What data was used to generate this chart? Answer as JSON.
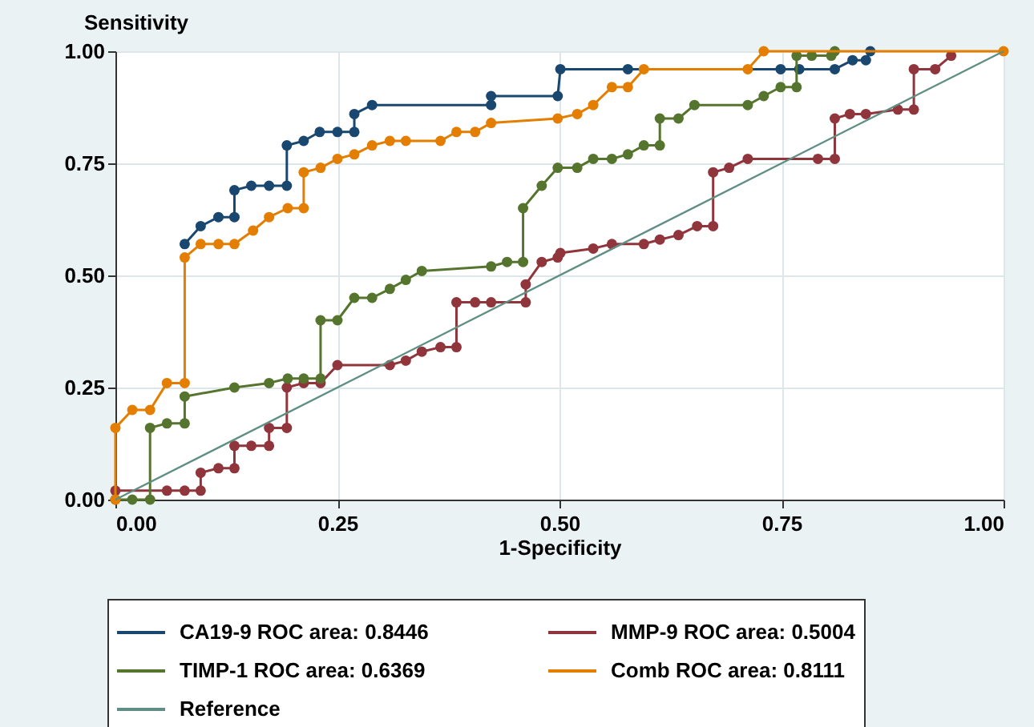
{
  "chart_data": {
    "type": "line",
    "xlabel": "1-Specificity",
    "ylabel": "Sensitivity",
    "xlim": [
      0,
      1
    ],
    "ylim": [
      0,
      1
    ],
    "xticks": [
      {
        "value": 0,
        "label": "0.00"
      },
      {
        "value": 0.25,
        "label": "0.25"
      },
      {
        "value": 0.5,
        "label": "0.50"
      },
      {
        "value": 0.75,
        "label": "0.75"
      },
      {
        "value": 1,
        "label": "1.00"
      }
    ],
    "yticks": [
      {
        "value": 0,
        "label": "0.00"
      },
      {
        "value": 0.25,
        "label": "0.25"
      },
      {
        "value": 0.5,
        "label": "0.50"
      },
      {
        "value": 0.75,
        "label": "0.75"
      },
      {
        "value": 1,
        "label": "1.00"
      }
    ],
    "grid": true,
    "legend": "bottom",
    "series": [
      {
        "name": "CA19-9 ROC area: 0.8446",
        "color": "#1a476f",
        "marker": "circle",
        "x": [
          0.078,
          0.096,
          0.116,
          0.134,
          0.134,
          0.153,
          0.173,
          0.193,
          0.193,
          0.212,
          0.23,
          0.25,
          0.269,
          0.269,
          0.289,
          0.423,
          0.423,
          0.498,
          0.501,
          0.577,
          0.749,
          0.77,
          0.81,
          0.83,
          0.845,
          0.85
        ],
        "values": [
          0.57,
          0.61,
          0.63,
          0.63,
          0.69,
          0.7,
          0.7,
          0.7,
          0.79,
          0.8,
          0.82,
          0.82,
          0.82,
          0.86,
          0.88,
          0.88,
          0.9,
          0.9,
          0.96,
          0.96,
          0.96,
          0.96,
          0.96,
          0.98,
          0.98,
          1
        ]
      },
      {
        "name": "MMP-9 ROC area: 0.5004",
        "color": "#90353b",
        "marker": "circle",
        "x": [
          0,
          0.058,
          0.078,
          0.096,
          0.096,
          0.116,
          0.134,
          0.134,
          0.153,
          0.173,
          0.173,
          0.193,
          0.193,
          0.212,
          0.231,
          0.25,
          0.309,
          0.327,
          0.345,
          0.366,
          0.384,
          0.384,
          0.405,
          0.423,
          0.462,
          0.462,
          0.48,
          0.498,
          0.501,
          0.538,
          0.559,
          0.595,
          0.613,
          0.634,
          0.655,
          0.673,
          0.673,
          0.691,
          0.712,
          0.791,
          0.81,
          0.81,
          0.827,
          0.845,
          0.881,
          0.899,
          0.899,
          0.923,
          0.941
        ],
        "values": [
          0.02,
          0.02,
          0.02,
          0.02,
          0.06,
          0.07,
          0.07,
          0.12,
          0.12,
          0.12,
          0.16,
          0.16,
          0.25,
          0.26,
          0.26,
          0.3,
          0.3,
          0.31,
          0.33,
          0.34,
          0.34,
          0.44,
          0.44,
          0.44,
          0.44,
          0.48,
          0.53,
          0.54,
          0.55,
          0.56,
          0.57,
          0.57,
          0.58,
          0.59,
          0.61,
          0.61,
          0.73,
          0.74,
          0.76,
          0.76,
          0.76,
          0.85,
          0.86,
          0.86,
          0.87,
          0.87,
          0.96,
          0.96,
          0.99
        ]
      },
      {
        "name": "TIMP-1 ROC area: 0.6369",
        "color": "#55752f",
        "marker": "circle",
        "x": [
          0,
          0.019,
          0.039,
          0.039,
          0.058,
          0.078,
          0.078,
          0.134,
          0.173,
          0.194,
          0.212,
          0.231,
          0.231,
          0.25,
          0.269,
          0.289,
          0.309,
          0.327,
          0.345,
          0.423,
          0.441,
          0.459,
          0.459,
          0.48,
          0.498,
          0.52,
          0.538,
          0.559,
          0.577,
          0.595,
          0.613,
          0.613,
          0.634,
          0.652,
          0.712,
          0.73,
          0.749,
          0.767,
          0.767,
          0.784,
          0.806,
          0.81
        ],
        "values": [
          0,
          0,
          0,
          0.16,
          0.17,
          0.17,
          0.23,
          0.25,
          0.26,
          0.27,
          0.27,
          0.27,
          0.4,
          0.4,
          0.45,
          0.45,
          0.47,
          0.49,
          0.51,
          0.52,
          0.53,
          0.53,
          0.65,
          0.7,
          0.74,
          0.74,
          0.76,
          0.76,
          0.77,
          0.79,
          0.79,
          0.85,
          0.85,
          0.88,
          0.88,
          0.9,
          0.92,
          0.92,
          0.99,
          0.99,
          0.99,
          1
        ]
      },
      {
        "name": "Comb ROC area: 0.8111",
        "color": "#e37e00",
        "marker": "circle",
        "x": [
          0,
          0,
          0.019,
          0.039,
          0.058,
          0.078,
          0.078,
          0.096,
          0.116,
          0.134,
          0.155,
          0.173,
          0.194,
          0.212,
          0.212,
          0.231,
          0.25,
          0.269,
          0.289,
          0.309,
          0.327,
          0.366,
          0.384,
          0.405,
          0.423,
          0.498,
          0.52,
          0.538,
          0.559,
          0.577,
          0.595,
          0.712,
          0.73,
          1
        ],
        "values": [
          0,
          0.16,
          0.2,
          0.2,
          0.26,
          0.26,
          0.54,
          0.57,
          0.57,
          0.57,
          0.6,
          0.63,
          0.65,
          0.65,
          0.73,
          0.74,
          0.76,
          0.77,
          0.79,
          0.8,
          0.8,
          0.8,
          0.82,
          0.82,
          0.84,
          0.85,
          0.86,
          0.88,
          0.92,
          0.92,
          0.96,
          0.96,
          1,
          1
        ]
      },
      {
        "name": "Reference",
        "color": "#5f8f84",
        "marker": "none",
        "x": [
          0,
          1
        ],
        "values": [
          0,
          1
        ]
      }
    ]
  }
}
